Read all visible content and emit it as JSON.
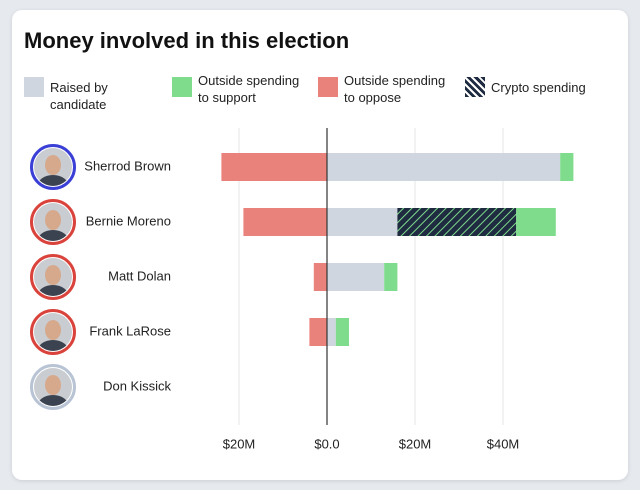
{
  "chart_data": {
    "type": "bar",
    "orientation": "horizontal",
    "stacked": true,
    "title": "Money involved in this election",
    "categories": [
      "Sherrod Brown",
      "Bernie Moreno",
      "Matt Dolan",
      "Frank LaRose",
      "Don Kissick"
    ],
    "series": [
      {
        "name": "Raised by candidate",
        "color": "#cfd6e0",
        "values": [
          53,
          16,
          13,
          2,
          0
        ]
      },
      {
        "name": "Outside spending to support",
        "color": "#7fdc8c",
        "values": [
          3,
          9,
          3,
          3,
          0
        ]
      },
      {
        "name": "Outside spending to oppose",
        "color": "#e8827b",
        "values": [
          -24,
          -19,
          -3,
          -4,
          0
        ]
      },
      {
        "name": "Crypto spending",
        "color": "#1f2b40",
        "pattern": "hatch",
        "values": [
          0,
          27,
          0,
          0,
          0
        ]
      }
    ],
    "xlim": [
      -30,
      60
    ],
    "xticks": [
      {
        "value": -20,
        "label": "$20M"
      },
      {
        "value": 0,
        "label": "$0.0"
      },
      {
        "value": 20,
        "label": "$20M"
      },
      {
        "value": 40,
        "label": "$40M"
      }
    ],
    "grid": true
  }
}
